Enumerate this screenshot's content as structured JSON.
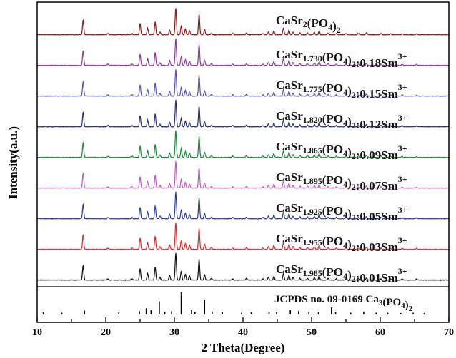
{
  "chart_data": {
    "type": "line",
    "xlabel": "2 Theta(Degree)",
    "ylabel": "Intensity(a.u.)",
    "xlim": [
      10,
      70
    ],
    "xticks": [
      10,
      20,
      30,
      40,
      50,
      60,
      70
    ],
    "grid": false,
    "peaks": [
      {
        "x": 16.7,
        "h": 0.55
      },
      {
        "x": 20.3,
        "h": 0.05
      },
      {
        "x": 23.8,
        "h": 0.06
      },
      {
        "x": 25.0,
        "h": 0.42
      },
      {
        "x": 26.1,
        "h": 0.25
      },
      {
        "x": 27.2,
        "h": 0.48
      },
      {
        "x": 27.9,
        "h": 0.1
      },
      {
        "x": 29.3,
        "h": 0.18
      },
      {
        "x": 30.2,
        "h": 1.0
      },
      {
        "x": 31.0,
        "h": 0.33
      },
      {
        "x": 31.6,
        "h": 0.22
      },
      {
        "x": 32.2,
        "h": 0.16
      },
      {
        "x": 33.6,
        "h": 0.78
      },
      {
        "x": 34.4,
        "h": 0.2
      },
      {
        "x": 35.4,
        "h": 0.06
      },
      {
        "x": 38.5,
        "h": 0.05
      },
      {
        "x": 40.5,
        "h": 0.06
      },
      {
        "x": 42.9,
        "h": 0.05
      },
      {
        "x": 43.7,
        "h": 0.1
      },
      {
        "x": 44.5,
        "h": 0.14
      },
      {
        "x": 45.9,
        "h": 0.25
      },
      {
        "x": 46.7,
        "h": 0.18
      },
      {
        "x": 47.3,
        "h": 0.1
      },
      {
        "x": 48.3,
        "h": 0.07
      },
      {
        "x": 49.4,
        "h": 0.07
      },
      {
        "x": 50.4,
        "h": 0.09
      },
      {
        "x": 51.1,
        "h": 0.14
      },
      {
        "x": 52.4,
        "h": 0.06
      },
      {
        "x": 53.6,
        "h": 0.05
      },
      {
        "x": 55.0,
        "h": 0.05
      },
      {
        "x": 56.8,
        "h": 0.05
      },
      {
        "x": 58.0,
        "h": 0.08
      },
      {
        "x": 60.1,
        "h": 0.05
      },
      {
        "x": 61.5,
        "h": 0.04
      },
      {
        "x": 63.2,
        "h": 0.04
      },
      {
        "x": 65.3,
        "h": 0.04
      }
    ],
    "series": [
      {
        "name": "CaSr2(PO4)2",
        "color": "#8b1a1a",
        "parts": [
          {
            "t": "CaSr"
          },
          {
            "t": "2",
            "s": "sub"
          },
          {
            "t": "(PO"
          },
          {
            "t": "4",
            "s": "sub"
          },
          {
            "t": ")"
          },
          {
            "t": "2",
            "s": "sub"
          }
        ]
      },
      {
        "name": "CaSr1.730(PO4)2:0.18Sm3+",
        "color": "#8e3aa1",
        "parts": [
          {
            "t": "CaSr"
          },
          {
            "t": "1.730",
            "s": "sub"
          },
          {
            "t": "(PO"
          },
          {
            "t": "4",
            "s": "sub"
          },
          {
            "t": ")"
          },
          {
            "t": "2",
            "s": "sub"
          },
          {
            "t": ":0.18Sm"
          },
          {
            "t": "3+",
            "s": "sup"
          }
        ]
      },
      {
        "name": "CaSr1.775(PO4)2:0.15Sm3+",
        "color": "#5b55b8",
        "parts": [
          {
            "t": "CaSr"
          },
          {
            "t": "1.775",
            "s": "sub"
          },
          {
            "t": "(PO"
          },
          {
            "t": "4",
            "s": "sub"
          },
          {
            "t": ")"
          },
          {
            "t": "2",
            "s": "sub"
          },
          {
            "t": ":0.15Sm"
          },
          {
            "t": "3+",
            "s": "sup"
          }
        ]
      },
      {
        "name": "CaSr1.820(PO4)2:0.12Sm3+",
        "color": "#2e2f78",
        "parts": [
          {
            "t": "CaSr"
          },
          {
            "t": "1.820",
            "s": "sub"
          },
          {
            "t": "(PO"
          },
          {
            "t": "4",
            "s": "sub"
          },
          {
            "t": ")"
          },
          {
            "t": "2",
            "s": "sub"
          },
          {
            "t": ":0.12Sm"
          },
          {
            "t": "3+",
            "s": "sup"
          }
        ]
      },
      {
        "name": "CaSr1.865(PO4)2:0.09Sm3+",
        "color": "#1a8c3a",
        "parts": [
          {
            "t": "CaSr"
          },
          {
            "t": "1.865",
            "s": "sub"
          },
          {
            "t": "(PO"
          },
          {
            "t": "4",
            "s": "sub"
          },
          {
            "t": ")"
          },
          {
            "t": "2",
            "s": "sub"
          },
          {
            "t": ":0.09Sm"
          },
          {
            "t": "3+",
            "s": "sup"
          }
        ]
      },
      {
        "name": "CaSr1.895(PO4)2:0.07Sm3+",
        "color": "#c25bc2",
        "parts": [
          {
            "t": "CaSr"
          },
          {
            "t": "1.895",
            "s": "sub"
          },
          {
            "t": "(PO"
          },
          {
            "t": "4",
            "s": "sub"
          },
          {
            "t": ")"
          },
          {
            "t": "2",
            "s": "sub"
          },
          {
            "t": ":0.07Sm"
          },
          {
            "t": "3+",
            "s": "sup"
          }
        ]
      },
      {
        "name": "CaSr1.925(PO4)2:0.05Sm3+",
        "color": "#2f3fa6",
        "parts": [
          {
            "t": "CaSr"
          },
          {
            "t": "1.925",
            "s": "sub"
          },
          {
            "t": "(PO"
          },
          {
            "t": "4",
            "s": "sub"
          },
          {
            "t": ")"
          },
          {
            "t": "2",
            "s": "sub"
          },
          {
            "t": ":0.05Sm"
          },
          {
            "t": "3+",
            "s": "sup"
          }
        ]
      },
      {
        "name": "CaSr1.955(PO4)2:0.03Sm3+",
        "color": "#e8262a",
        "parts": [
          {
            "t": "CaSr"
          },
          {
            "t": "1.955",
            "s": "sub"
          },
          {
            "t": "(PO"
          },
          {
            "t": "4",
            "s": "sub"
          },
          {
            "t": ")"
          },
          {
            "t": "2",
            "s": "sub"
          },
          {
            "t": ":0.03Sm"
          },
          {
            "t": "3+",
            "s": "sup"
          }
        ]
      },
      {
        "name": "CaSr1.985(PO4)2:0.01Sm3+",
        "color": "#111111",
        "parts": [
          {
            "t": "CaSr"
          },
          {
            "t": "1.985",
            "s": "sub"
          },
          {
            "t": "(PO"
          },
          {
            "t": "4",
            "s": "sub"
          },
          {
            "t": ")"
          },
          {
            "t": "2",
            "s": "sub"
          },
          {
            "t": ":0.01Sm"
          },
          {
            "t": "3+",
            "s": "sup"
          }
        ]
      }
    ],
    "reference": {
      "name": "JCPDS no. 09-0169 Ca3(PO4)2",
      "color": "#000000",
      "parts": [
        {
          "t": "JCPDS no. 09-0169 Ca"
        },
        {
          "t": "3",
          "s": "sub"
        },
        {
          "t": "(PO"
        },
        {
          "t": "4",
          "s": "sub"
        },
        {
          "t": ")"
        },
        {
          "t": "2",
          "s": "sub"
        }
      ],
      "lines": [
        {
          "x": 10.9,
          "h": 0.1
        },
        {
          "x": 13.6,
          "h": 0.08
        },
        {
          "x": 16.9,
          "h": 0.18
        },
        {
          "x": 21.9,
          "h": 0.1
        },
        {
          "x": 24.9,
          "h": 0.15
        },
        {
          "x": 25.9,
          "h": 0.28
        },
        {
          "x": 26.6,
          "h": 0.2
        },
        {
          "x": 27.8,
          "h": 0.6
        },
        {
          "x": 28.6,
          "h": 0.12
        },
        {
          "x": 29.6,
          "h": 0.15
        },
        {
          "x": 31.0,
          "h": 1.0
        },
        {
          "x": 32.5,
          "h": 0.22
        },
        {
          "x": 33.0,
          "h": 0.12
        },
        {
          "x": 34.4,
          "h": 0.68
        },
        {
          "x": 35.5,
          "h": 0.14
        },
        {
          "x": 37.0,
          "h": 0.1
        },
        {
          "x": 39.8,
          "h": 0.08
        },
        {
          "x": 41.2,
          "h": 0.1
        },
        {
          "x": 43.8,
          "h": 0.12
        },
        {
          "x": 44.9,
          "h": 0.1
        },
        {
          "x": 46.9,
          "h": 0.2
        },
        {
          "x": 48.1,
          "h": 0.15
        },
        {
          "x": 49.6,
          "h": 0.12
        },
        {
          "x": 51.0,
          "h": 0.1
        },
        {
          "x": 52.9,
          "h": 0.32
        },
        {
          "x": 53.5,
          "h": 0.1
        },
        {
          "x": 55.7,
          "h": 0.08
        },
        {
          "x": 57.6,
          "h": 0.12
        },
        {
          "x": 59.4,
          "h": 0.08
        },
        {
          "x": 61.1,
          "h": 0.08
        },
        {
          "x": 63.0,
          "h": 0.07
        },
        {
          "x": 64.8,
          "h": 0.08
        },
        {
          "x": 66.4,
          "h": 0.06
        }
      ]
    }
  }
}
